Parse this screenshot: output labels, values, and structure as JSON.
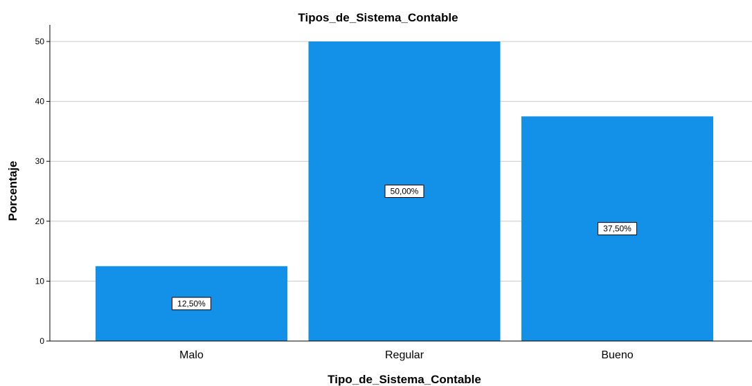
{
  "chart_data": {
    "type": "bar",
    "title": "Tipos_de_Sistema_Contable",
    "xlabel": "Tipo_de_Sistema_Contable",
    "ylabel": "Porcentaje",
    "categories": [
      "Malo",
      "Regular",
      "Bueno"
    ],
    "values": [
      12.5,
      50.0,
      37.5
    ],
    "data_labels": [
      "12,50%",
      "50,00%",
      "37,50%"
    ],
    "ylim": [
      0,
      50
    ],
    "yticks": [
      0,
      10,
      20,
      30,
      40,
      50
    ],
    "grid": true,
    "bar_color": "#1391e8",
    "grid_color": "#c8c8c8"
  }
}
